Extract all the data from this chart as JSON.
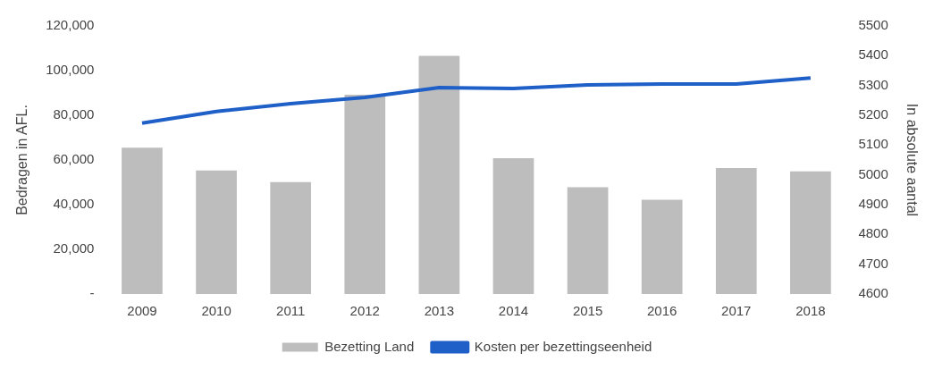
{
  "chart_data": {
    "type": "bar",
    "ylabel": "Bedragen in AFL.",
    "y2label": "In absolute aantal",
    "categories": [
      "2009",
      "2010",
      "2011",
      "2012",
      "2013",
      "2014",
      "2015",
      "2016",
      "2017",
      "2018"
    ],
    "series": [
      {
        "name": "Bezetting Land",
        "color": "#bdbdbd",
        "values": [
          65500,
          55300,
          50100,
          89200,
          106600,
          60800,
          47800,
          42200,
          56400,
          54900
        ]
      },
      {
        "name": "Kosten per bezettingseenheid",
        "type": "line",
        "axis": "y2",
        "color": "#1f5fc8",
        "values": [
          5174,
          5213,
          5239,
          5260,
          5293,
          5290,
          5302,
          5305,
          5305,
          5325
        ]
      }
    ],
    "ylim": [
      0,
      120000
    ],
    "yticks": [
      {
        "value": 0,
        "label": "-"
      },
      {
        "value": 20000,
        "label": "20,000"
      },
      {
        "value": 40000,
        "label": "40,000"
      },
      {
        "value": 60000,
        "label": "60,000"
      },
      {
        "value": 80000,
        "label": "80,000"
      },
      {
        "value": 100000,
        "label": "100,000"
      },
      {
        "value": 120000,
        "label": "120,000"
      }
    ],
    "y2lim": [
      4600,
      5500
    ],
    "y2ticks": [
      4600,
      4700,
      4800,
      4900,
      5000,
      5100,
      5200,
      5300,
      5400,
      5500
    ],
    "grid": false,
    "legend": "bottom",
    "marker": "none"
  }
}
